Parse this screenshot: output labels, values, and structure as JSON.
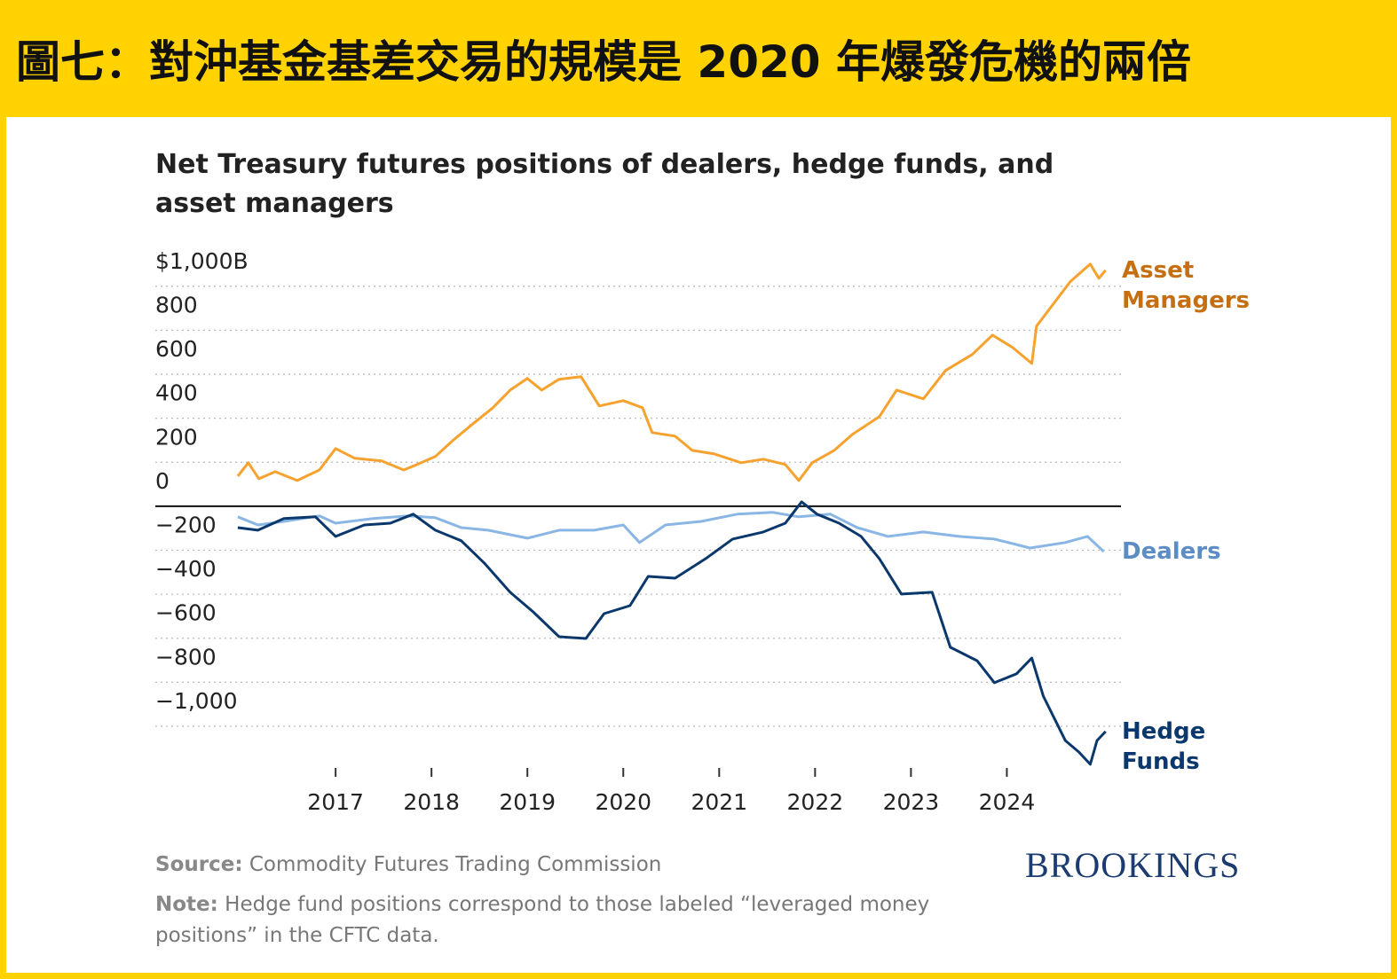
{
  "header": {
    "title": "圖七：對沖基金基差交易的規模是 2020 年爆發危機的兩倍"
  },
  "chart_data": {
    "type": "line",
    "title": "Net Treasury futures positions of dealers, hedge funds, and asset managers",
    "xlim": [
      2015.12,
      2025.19
    ],
    "xticks": [
      2017,
      2018,
      2019,
      2020,
      2021,
      2022,
      2023,
      2024
    ],
    "ylim": [
      -1200,
      1100
    ],
    "yticks": [
      {
        "value": 1000,
        "label": "$1,000B"
      },
      800,
      600,
      400,
      200,
      0,
      {
        "value": -200,
        "label": "−200"
      },
      {
        "value": -400,
        "label": "−400"
      },
      {
        "value": -600,
        "label": "−600"
      },
      {
        "value": -800,
        "label": "−800"
      },
      {
        "value": -1000,
        "label": "−1,000"
      }
    ],
    "grid": true,
    "series": [
      {
        "name": "Asset Managers",
        "color": "#f7a22e",
        "label_color": "#c56f12",
        "x": [
          2015.98,
          2016.09,
          2016.2,
          2016.37,
          2016.6,
          2016.83,
          2017.0,
          2017.2,
          2017.48,
          2017.71,
          2017.85,
          2018.04,
          2018.22,
          2018.41,
          2018.64,
          2018.82,
          2019.0,
          2019.15,
          2019.33,
          2019.56,
          2019.75,
          2020.0,
          2020.2,
          2020.3,
          2020.54,
          2020.72,
          2020.95,
          2021.23,
          2021.46,
          2021.69,
          2021.83,
          2021.97,
          2022.2,
          2022.39,
          2022.67,
          2022.85,
          2023.13,
          2023.36,
          2023.64,
          2023.85,
          2024.06,
          2024.26,
          2024.31,
          2024.47,
          2024.66,
          2024.87,
          2024.96,
          2025.03
        ],
        "values": [
          137,
          198,
          125,
          157,
          117,
          165,
          262,
          218,
          206,
          165,
          190,
          226,
          298,
          367,
          448,
          528,
          581,
          528,
          577,
          589,
          456,
          480,
          448,
          335,
          319,
          254,
          238,
          198,
          214,
          190,
          117,
          198,
          254,
          327,
          407,
          528,
          488,
          617,
          690,
          778,
          722,
          649,
          819,
          911,
          1020,
          1101,
          1036,
          1073
        ]
      },
      {
        "name": "Dealers",
        "color": "#8ab6e6",
        "label_color": "#5b8cc6",
        "x": [
          2015.98,
          2016.19,
          2016.46,
          2016.83,
          2017.0,
          2017.39,
          2017.76,
          2018.04,
          2018.31,
          2018.59,
          2019.0,
          2019.33,
          2019.7,
          2020.0,
          2020.17,
          2020.44,
          2020.81,
          2021.19,
          2021.56,
          2021.83,
          2022.16,
          2022.44,
          2022.76,
          2023.13,
          2023.5,
          2023.87,
          2024.24,
          2024.61,
          2024.84,
          2025.01
        ],
        "values": [
          -48,
          -85,
          -69,
          -44,
          -77,
          -56,
          -44,
          -52,
          -97,
          -109,
          -145,
          -109,
          -109,
          -85,
          -165,
          -85,
          -69,
          -36,
          -28,
          -48,
          -36,
          -97,
          -137,
          -117,
          -137,
          -149,
          -190,
          -165,
          -137,
          -206
        ]
      },
      {
        "name": "Hedge Funds",
        "color": "#0b386c",
        "label_color": "#0b386c",
        "x": [
          2015.98,
          2016.19,
          2016.46,
          2016.79,
          2017.0,
          2017.3,
          2017.57,
          2017.81,
          2018.04,
          2018.31,
          2018.55,
          2018.82,
          2019.06,
          2019.33,
          2019.61,
          2019.8,
          2020.07,
          2020.26,
          2020.54,
          2020.86,
          2021.14,
          2021.46,
          2021.69,
          2021.86,
          2022.02,
          2022.25,
          2022.48,
          2022.67,
          2022.9,
          2023.22,
          2023.41,
          2023.69,
          2023.87,
          2024.1,
          2024.26,
          2024.38,
          2024.61,
          2024.75,
          2024.87,
          2024.94,
          2025.03
        ],
        "values": [
          -97,
          -109,
          -56,
          -48,
          -137,
          -85,
          -77,
          -36,
          -109,
          -157,
          -258,
          -391,
          -480,
          -593,
          -601,
          -488,
          -452,
          -319,
          -327,
          -238,
          -149,
          -117,
          -77,
          20,
          -36,
          -77,
          -137,
          -238,
          -399,
          -391,
          -641,
          -702,
          -802,
          -762,
          -690,
          -863,
          -1065,
          -1117,
          -1173,
          -1065,
          -1024
        ]
      }
    ]
  },
  "footer": {
    "source_label": "Source:",
    "source_text": "Commodity Futures Trading Commission",
    "note_label": "Note:",
    "note_text": "Hedge fund positions correspond to those labeled “leveraged money positions” in the CFTC data.",
    "logo": "BROOKINGS"
  }
}
